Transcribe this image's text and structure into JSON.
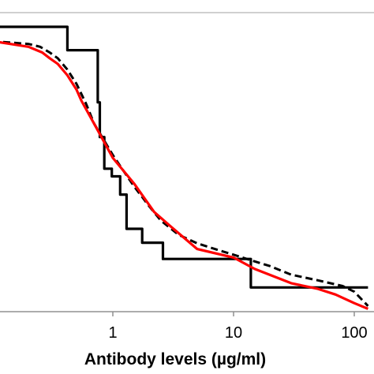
{
  "chart_data": {
    "type": "line",
    "title": "",
    "xlabel": "Antibody levels (µg/ml)",
    "ylabel": "",
    "x_scale": "log",
    "xlim": [
      0.1,
      130
    ],
    "ylim": [
      0,
      1.05
    ],
    "x_ticks": [
      {
        "value": 1,
        "label": "1"
      },
      {
        "value": 10,
        "label": "10"
      },
      {
        "value": 100,
        "label": "100"
      }
    ],
    "grid": false,
    "legend": "none",
    "series": [
      {
        "style": "step-solid",
        "color": "#000000",
        "x": [
          0.1,
          0.42,
          0.42,
          0.75,
          0.75,
          0.78,
          0.78,
          0.85,
          0.85,
          0.98,
          0.98,
          1.15,
          1.15,
          1.3,
          1.3,
          1.75,
          1.75,
          2.6,
          2.6,
          13.9,
          13.9,
          130
        ],
        "y": [
          1.0,
          1.0,
          0.918,
          0.918,
          0.735,
          0.735,
          0.613,
          0.613,
          0.502,
          0.502,
          0.475,
          0.475,
          0.411,
          0.411,
          0.291,
          0.291,
          0.242,
          0.242,
          0.185,
          0.185,
          0.085,
          0.085
        ]
      },
      {
        "style": "step-dashed",
        "color": "#000000",
        "x": [
          0.1,
          0.2,
          0.25,
          0.3,
          0.35,
          0.42,
          0.5,
          0.6,
          0.7,
          0.85,
          1.0,
          1.2,
          1.5,
          2.0,
          2.5,
          3.5,
          5.0,
          7.0,
          10.0,
          14.0,
          20.0,
          30.0,
          50.0,
          80.0,
          100.0,
          130.0
        ],
        "y": [
          0.95,
          0.94,
          0.93,
          0.91,
          0.89,
          0.85,
          0.8,
          0.73,
          0.66,
          0.6,
          0.55,
          0.5,
          0.44,
          0.37,
          0.32,
          0.27,
          0.24,
          0.22,
          0.2,
          0.18,
          0.16,
          0.13,
          0.11,
          0.09,
          0.07,
          0.02
        ]
      },
      {
        "style": "line-red",
        "color": "#ff0000",
        "x": [
          0.1,
          0.2,
          0.26,
          0.3,
          0.35,
          0.42,
          0.5,
          0.55,
          0.7,
          1.0,
          1.5,
          2.2,
          3.0,
          5.0,
          10.0,
          15.0,
          30.0,
          50.0,
          70.0,
          100.0,
          130.0
        ],
        "y": [
          0.95,
          0.93,
          0.91,
          0.89,
          0.87,
          0.83,
          0.78,
          0.74,
          0.66,
          0.54,
          0.45,
          0.35,
          0.3,
          0.22,
          0.19,
          0.15,
          0.1,
          0.08,
          0.06,
          0.03,
          0.01
        ]
      }
    ]
  }
}
